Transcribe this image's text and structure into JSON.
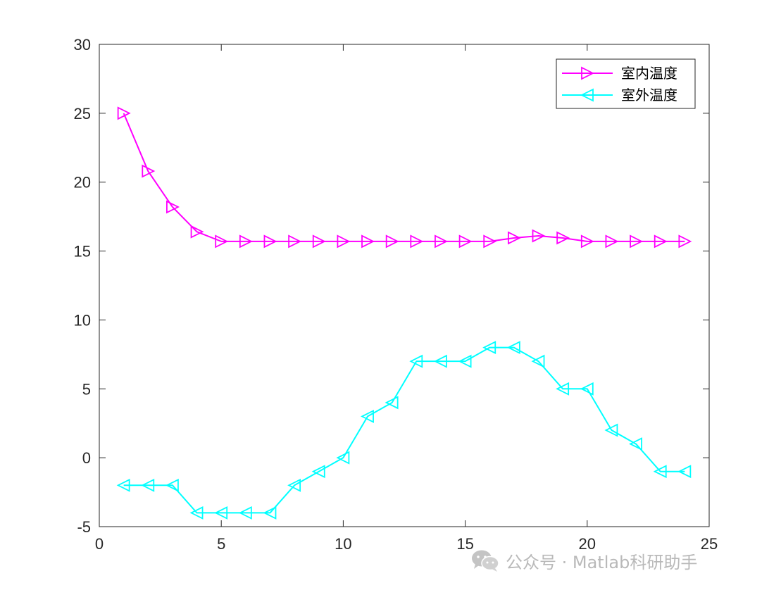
{
  "chart_data": {
    "type": "line",
    "title": "",
    "xlabel": "",
    "ylabel": "",
    "xlim": [
      0,
      25
    ],
    "ylim": [
      -5,
      30
    ],
    "xticks": [
      "0",
      "5",
      "10",
      "15",
      "20",
      "25"
    ],
    "yticks": [
      "-5",
      "0",
      "5",
      "10",
      "15",
      "20",
      "25",
      "30"
    ],
    "grid": false,
    "legend_position": "top-right",
    "x": [
      1,
      2,
      3,
      4,
      5,
      6,
      7,
      8,
      9,
      10,
      11,
      12,
      13,
      14,
      15,
      16,
      17,
      18,
      19,
      20,
      21,
      22,
      23,
      24
    ],
    "series": [
      {
        "name": "室内温度",
        "color": "#ff00ff",
        "marker": "triangle-right",
        "values": [
          25.0,
          20.8,
          18.2,
          16.4,
          15.7,
          15.7,
          15.7,
          15.7,
          15.7,
          15.7,
          15.7,
          15.7,
          15.7,
          15.7,
          15.7,
          15.7,
          15.95,
          16.1,
          15.95,
          15.7,
          15.7,
          15.7,
          15.7,
          15.7
        ]
      },
      {
        "name": "室外温度",
        "color": "#00ffff",
        "marker": "triangle-left",
        "values": [
          -2,
          -2,
          -2,
          -4,
          -4,
          -4,
          -4,
          -2,
          -1,
          0,
          3,
          4,
          7,
          7,
          7,
          8,
          8,
          7,
          5,
          5,
          2,
          1,
          -1,
          -1
        ]
      }
    ]
  },
  "watermark": {
    "icon": "wechat-icon",
    "text": "公众号 · Matlab科研助手"
  }
}
